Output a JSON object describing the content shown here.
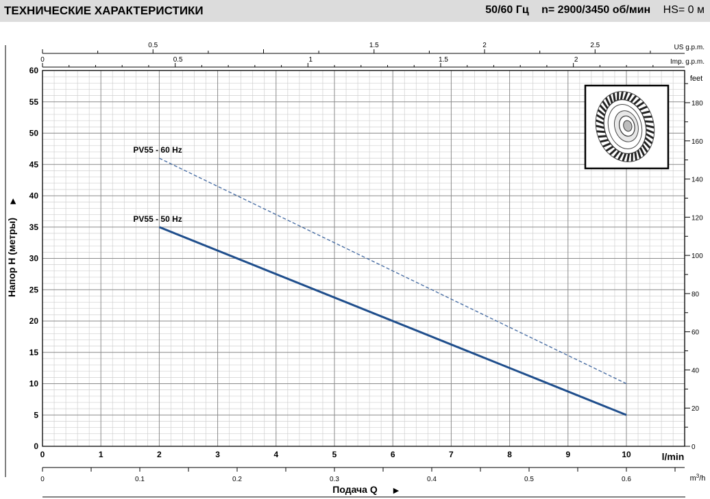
{
  "header": {
    "title": "ТЕХНИЧЕСКИЕ ХАРАКТЕРИСТИКИ",
    "frequency": "50/60 Гц",
    "speed": "n= 2900/3450  об/мин",
    "hs": "HS= 0 м"
  },
  "chart_data": {
    "type": "line",
    "x": [
      2,
      10
    ],
    "series": [
      {
        "name": "PV55 - 50 Hz",
        "values": [
          35,
          5
        ],
        "style": "solid",
        "color": "#1f4e8c"
      },
      {
        "name": "PV55 - 60 Hz",
        "values": [
          46,
          10
        ],
        "style": "dashed",
        "color": "#4a6fa5"
      }
    ],
    "xlim": [
      0,
      11
    ],
    "ylim": [
      0,
      60
    ],
    "x_ticks": [
      0,
      1,
      2,
      3,
      4,
      5,
      6,
      7,
      8,
      9,
      10
    ],
    "y_ticks": [
      0,
      5,
      10,
      15,
      20,
      25,
      30,
      35,
      40,
      45,
      50,
      55,
      60
    ],
    "xlabel": "l/min",
    "ylabel": "Напор Н (метры)",
    "grid": true,
    "secondary_axes": {
      "top_us": {
        "label": "US g.p.m.",
        "ticks": [
          "0.5",
          "1.5",
          "2",
          "2.5"
        ],
        "values": [
          0.5,
          1.5,
          2,
          2.5
        ],
        "per_lmin": 0.26417
      },
      "top_imp": {
        "label": "Imp. g.p.m.",
        "ticks": [
          "0",
          "0.5",
          "1",
          "1.5",
          "2"
        ],
        "values": [
          0,
          0.5,
          1,
          1.5,
          2
        ],
        "per_lmin": 0.21997
      },
      "right_feet": {
        "label": "feet",
        "ticks": [
          "0",
          "20",
          "40",
          "60",
          "80",
          "100",
          "120",
          "140",
          "160",
          "180"
        ],
        "values": [
          0,
          20,
          40,
          60,
          80,
          100,
          120,
          140,
          160,
          180
        ],
        "per_m": 3.28084
      },
      "bottom_m3h": {
        "label": "m³/h",
        "ticks": [
          "0",
          "0.1",
          "0.2",
          "0.3",
          "0.4",
          "0.5",
          "0.6"
        ],
        "values": [
          0,
          0.1,
          0.2,
          0.3,
          0.4,
          0.5,
          0.6
        ],
        "lmin_per": 16.6667
      }
    },
    "bottom_label": "Подача Q",
    "inset": "impeller-image"
  }
}
